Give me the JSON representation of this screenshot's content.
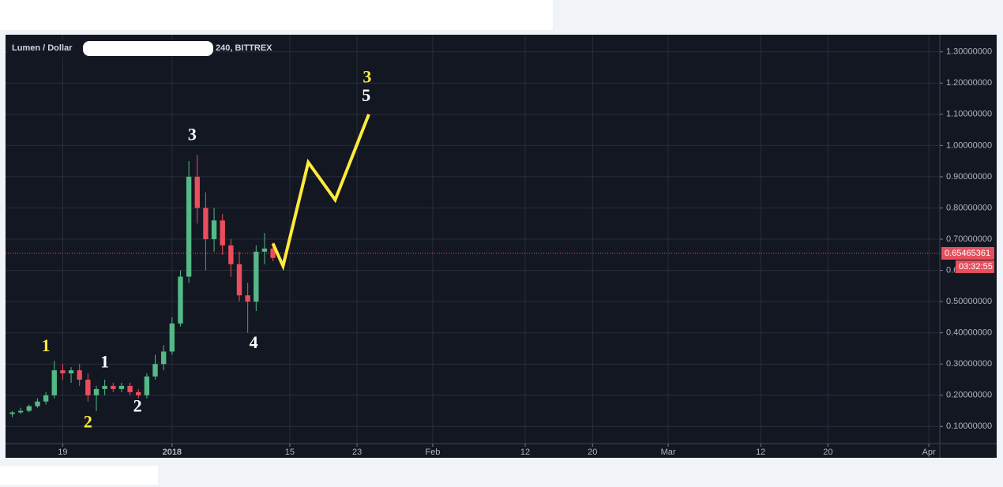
{
  "chart_data": {
    "type": "candlestick",
    "title": "Lumen / Dollar",
    "subtitle": "240, BITTREX",
    "x": [
      12,
      13,
      14,
      15,
      16,
      17,
      18,
      19,
      20,
      21,
      22,
      23,
      24,
      25,
      26,
      27,
      28,
      29,
      30,
      31,
      32,
      33,
      34,
      35,
      36,
      37,
      38,
      39,
      40,
      41,
      42,
      43
    ],
    "open": [
      0.14,
      0.145,
      0.15,
      0.165,
      0.18,
      0.2,
      0.28,
      0.27,
      0.28,
      0.25,
      0.2,
      0.22,
      0.23,
      0.22,
      0.23,
      0.21,
      0.2,
      0.26,
      0.3,
      0.34,
      0.43,
      0.58,
      0.9,
      0.8,
      0.7,
      0.76,
      0.68,
      0.62,
      0.52,
      0.5,
      0.66,
      0.67
    ],
    "high": [
      0.15,
      0.16,
      0.17,
      0.19,
      0.21,
      0.31,
      0.3,
      0.29,
      0.3,
      0.27,
      0.23,
      0.25,
      0.24,
      0.24,
      0.24,
      0.22,
      0.27,
      0.33,
      0.36,
      0.45,
      0.6,
      0.95,
      0.97,
      0.85,
      0.8,
      0.78,
      0.7,
      0.66,
      0.56,
      0.68,
      0.72,
      0.69
    ],
    "low": [
      0.13,
      0.14,
      0.145,
      0.16,
      0.17,
      0.19,
      0.25,
      0.24,
      0.23,
      0.18,
      0.15,
      0.2,
      0.21,
      0.21,
      0.2,
      0.19,
      0.19,
      0.25,
      0.28,
      0.33,
      0.42,
      0.56,
      0.75,
      0.6,
      0.66,
      0.65,
      0.58,
      0.5,
      0.4,
      0.47,
      0.62,
      0.63
    ],
    "close": [
      0.145,
      0.15,
      0.165,
      0.18,
      0.2,
      0.28,
      0.27,
      0.28,
      0.25,
      0.2,
      0.22,
      0.23,
      0.22,
      0.23,
      0.21,
      0.2,
      0.26,
      0.3,
      0.34,
      0.43,
      0.58,
      0.9,
      0.8,
      0.7,
      0.76,
      0.68,
      0.62,
      0.52,
      0.5,
      0.66,
      0.67,
      0.64
    ],
    "up_color": "#53b987",
    "down_color": "#eb4d5c",
    "projection": {
      "color": "#ffeb3b",
      "x": [
        43.0,
        44.2,
        47.2,
        50.4,
        54.4
      ],
      "values": [
        0.686,
        0.614,
        0.946,
        0.826,
        1.1
      ]
    },
    "annotations": [
      {
        "text": "1",
        "x": 16.0,
        "y": 0.354,
        "color": "#ffeb3b"
      },
      {
        "text": "2",
        "x": 21.0,
        "y": 0.11,
        "color": "#ffeb3b"
      },
      {
        "text": "1",
        "x": 23.0,
        "y": 0.302,
        "color": "#ffffff"
      },
      {
        "text": "2",
        "x": 26.9,
        "y": 0.16,
        "color": "#ffffff"
      },
      {
        "text": "3",
        "x": 33.4,
        "y": 1.03,
        "color": "#ffffff"
      },
      {
        "text": "4",
        "x": 40.7,
        "y": 0.364,
        "color": "#ffffff"
      },
      {
        "text": "5",
        "x": 54.1,
        "y": 1.155,
        "color": "#ffffff"
      },
      {
        "text": "3",
        "x": 54.2,
        "y": 1.215,
        "color": "#ffeb3b"
      }
    ],
    "last_price": 0.65465361,
    "countdown": "03:32:55",
    "price_color": "#e84f5c",
    "xlim": [
      11.2,
      122.3
    ],
    "ylim": [
      0.0452,
      1.3549
    ],
    "xticks": [
      {
        "value": 18,
        "label": "19"
      },
      {
        "value": 31,
        "label": "2018"
      },
      {
        "value": 45,
        "label": "15"
      },
      {
        "value": 53,
        "label": "23"
      },
      {
        "value": 62,
        "label": "Feb"
      },
      {
        "value": 73,
        "label": "12"
      },
      {
        "value": 81,
        "label": "20"
      },
      {
        "value": 90,
        "label": "Mar"
      },
      {
        "value": 101,
        "label": "12"
      },
      {
        "value": 109,
        "label": "20"
      },
      {
        "value": 121,
        "label": "Apr"
      }
    ],
    "yticks": [
      {
        "value": 0.1,
        "label": "0.10000000"
      },
      {
        "value": 0.2,
        "label": "0.20000000"
      },
      {
        "value": 0.3,
        "label": "0.30000000"
      },
      {
        "value": 0.4,
        "label": "0.40000000"
      },
      {
        "value": 0.5,
        "label": "0.50000000"
      },
      {
        "value": 0.6,
        "label": "0.60000000"
      },
      {
        "value": 0.7,
        "label": "0.70000000"
      },
      {
        "value": 0.8,
        "label": "0.80000000"
      },
      {
        "value": 0.9,
        "label": "0.90000000"
      },
      {
        "value": 1.0,
        "label": "1.00000000"
      },
      {
        "value": 1.1,
        "label": "1.10000000"
      },
      {
        "value": 1.2,
        "label": "1.20000000"
      },
      {
        "value": 1.3,
        "label": "1.30000000"
      }
    ],
    "grid": true
  }
}
